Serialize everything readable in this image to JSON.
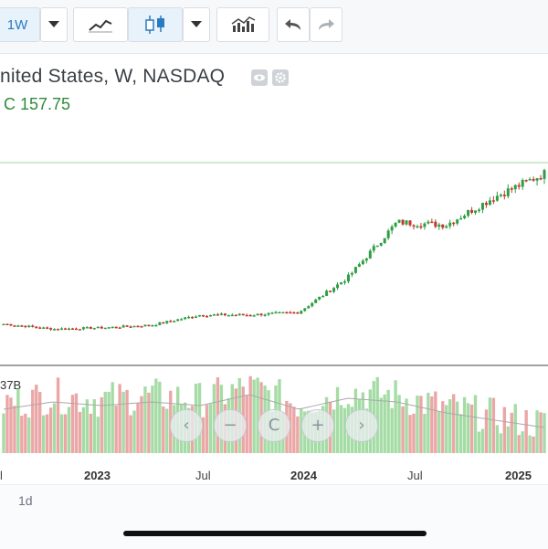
{
  "toolbar": {
    "interval_label": "1W",
    "buttons": [
      "interval",
      "interval-dropdown",
      "line-chart",
      "candlestick-chart",
      "chart-type-dropdown",
      "indicators",
      "undo",
      "redo"
    ]
  },
  "header": {
    "title": "nited States, W, NASDAQ",
    "ohlc": "C 157.75"
  },
  "volume_panel": {
    "label": "37B"
  },
  "x_axis": {
    "labels": [
      "l",
      "2023",
      "Jul",
      "2024",
      "Jul",
      "2025"
    ]
  },
  "footer": {
    "interval_label": "1d"
  },
  "colors": {
    "up": "#2e9e44",
    "down": "#c0392b",
    "up_volume": "#a5dca5",
    "down_volume": "#eba6a6",
    "accent": "#2a7ac0",
    "high_line": "#9fd9a3"
  },
  "chart_data": {
    "type": "candlestick",
    "x": [
      "2022-06",
      "2022-09",
      "2022-12",
      "2023-03",
      "2023-06",
      "2023-09",
      "2023-12",
      "2024-03",
      "2024-06",
      "2024-09",
      "2024-12",
      "2025-02"
    ],
    "close": [
      41,
      37,
      38,
      40,
      48,
      48,
      50,
      77,
      120,
      118,
      140,
      158
    ],
    "volume_relative": [
      0.6,
      0.7,
      0.65,
      0.7,
      0.65,
      0.8,
      0.6,
      0.75,
      0.7,
      0.55,
      0.45,
      0.35
    ]
  }
}
